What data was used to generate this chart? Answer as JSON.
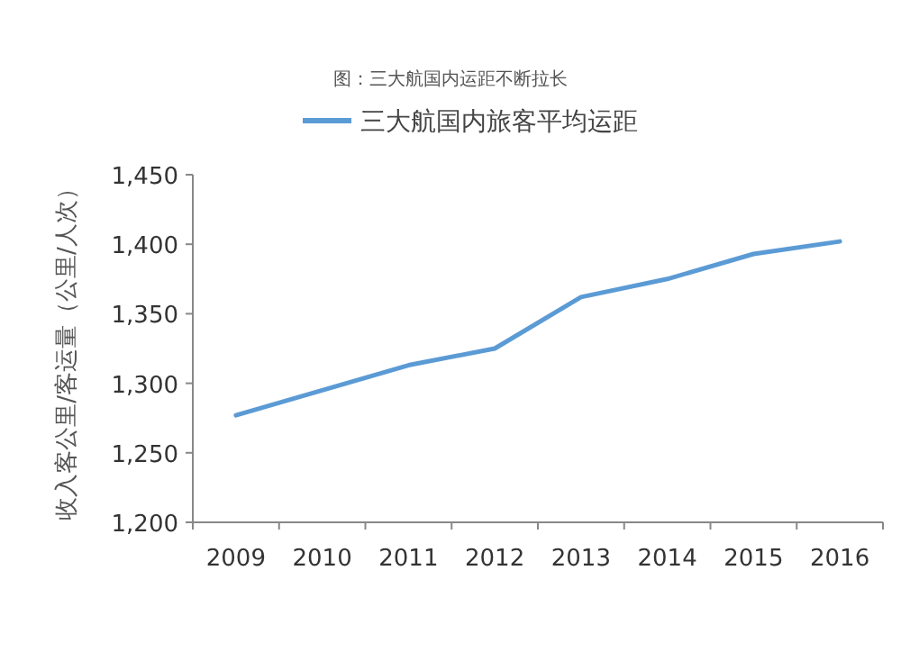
{
  "chart_data": {
    "type": "line",
    "title": "图：三大航国内运距不断拉长",
    "ylabel": "收入客公里/客运量（公里/人次）",
    "categories": [
      "2009",
      "2010",
      "2011",
      "2012",
      "2013",
      "2014",
      "2015",
      "2016"
    ],
    "series": [
      {
        "name": "三大航国内旅客平均运距",
        "color": "#5b9bd5",
        "values": [
          1277,
          1295,
          1313,
          1325,
          1362,
          1375,
          1393,
          1402
        ]
      }
    ],
    "ylim": [
      1200,
      1450
    ],
    "yticks": [
      {
        "value": 1200,
        "label": "1,200"
      },
      {
        "value": 1250,
        "label": "1,250"
      },
      {
        "value": 1300,
        "label": "1,300"
      },
      {
        "value": 1350,
        "label": "1,350"
      },
      {
        "value": 1400,
        "label": "1,400"
      },
      {
        "value": 1450,
        "label": "1,450"
      }
    ],
    "legend": "top",
    "grid": false,
    "marker": "none",
    "line_style": "solid"
  }
}
